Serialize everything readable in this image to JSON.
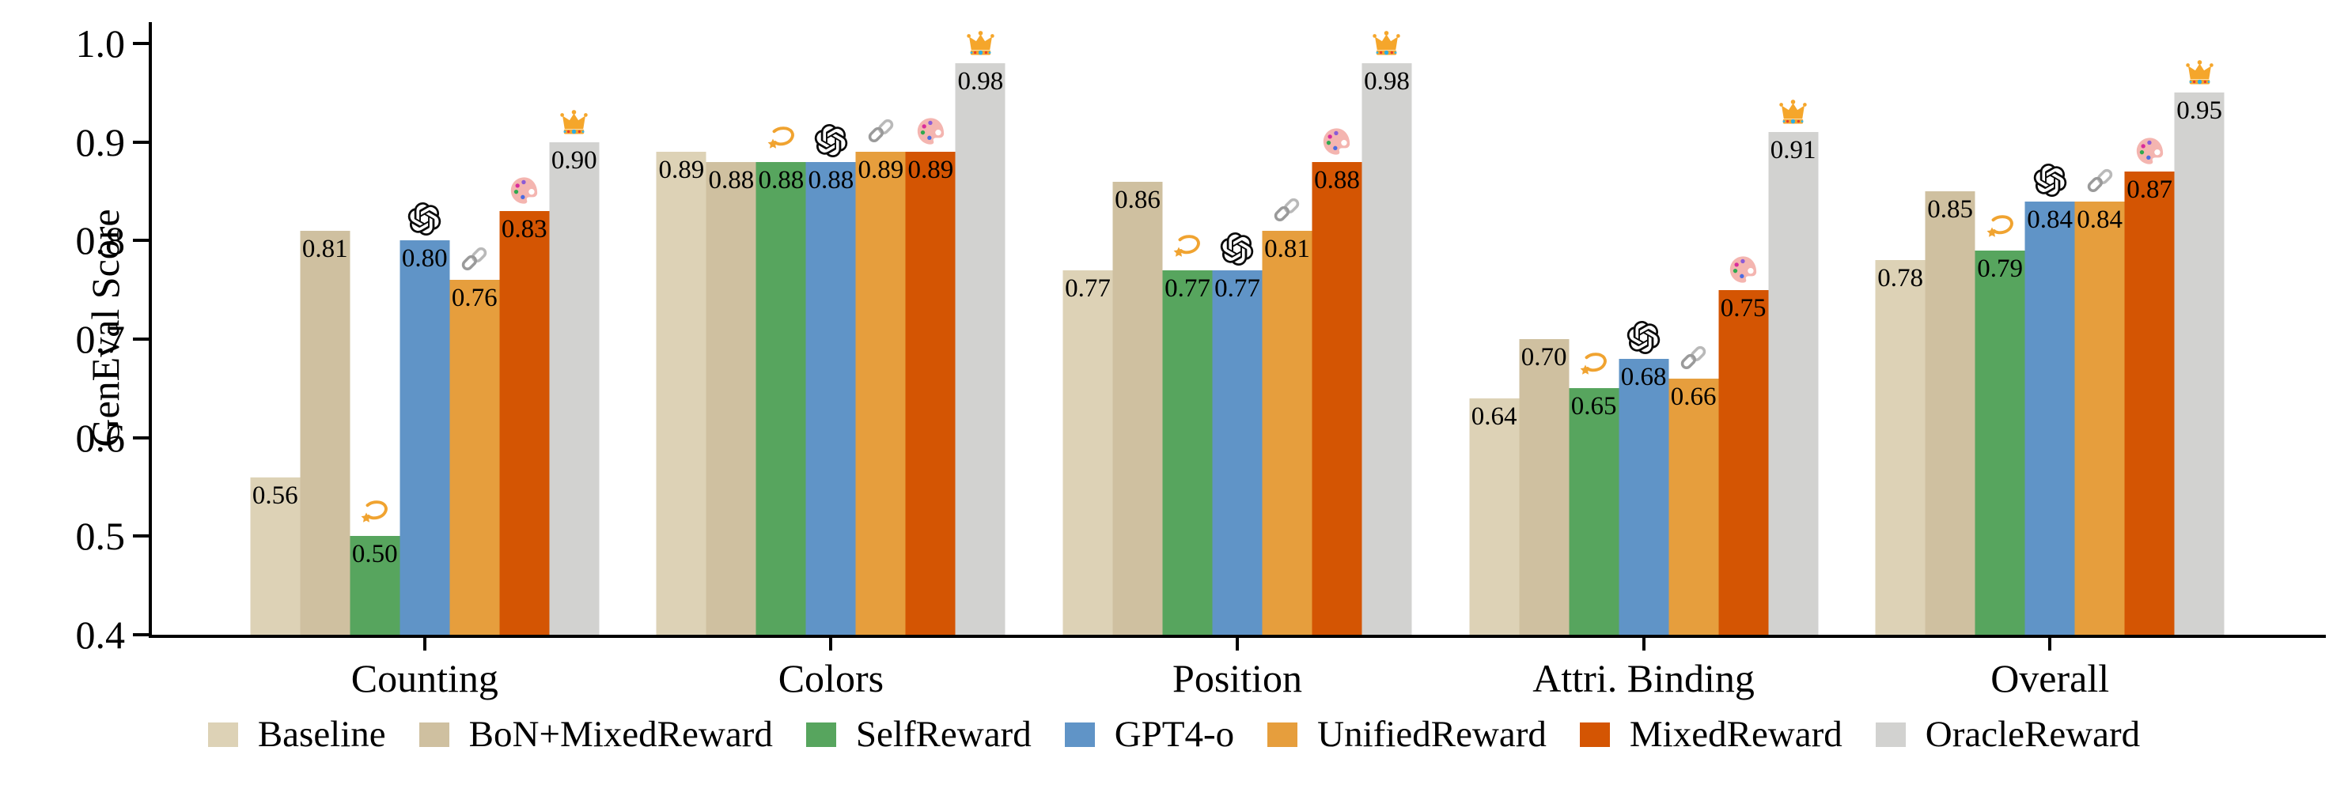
{
  "chart_data": {
    "type": "bar",
    "title": "",
    "xlabel": "",
    "ylabel": "GenEval Score",
    "ylim": [
      0.4,
      1.0
    ],
    "yticks": [
      0.4,
      0.5,
      0.6,
      0.7,
      0.8,
      0.9,
      1.0
    ],
    "grid": false,
    "legend_position": "bottom",
    "value_labels": true,
    "value_label_decimals": 2,
    "categories": [
      "Counting",
      "Colors",
      "Position",
      "Attri. Binding",
      "Overall"
    ],
    "series": [
      {
        "name": "Baseline",
        "color": "#ddd2b6",
        "values": [
          0.56,
          0.89,
          0.77,
          0.64,
          0.78
        ]
      },
      {
        "name": "BoN+MixedReward",
        "color": "#cfc0a0",
        "values": [
          0.81,
          0.88,
          0.86,
          0.7,
          0.85
        ]
      },
      {
        "name": "SelfReward",
        "color": "#57a55e",
        "icon": "dizzy-icon",
        "values": [
          0.5,
          0.88,
          0.77,
          0.65,
          0.79
        ]
      },
      {
        "name": "GPT4-o",
        "color": "#6094c7",
        "icon": "openai-icon",
        "values": [
          0.8,
          0.88,
          0.77,
          0.68,
          0.84
        ]
      },
      {
        "name": "UnifiedReward",
        "color": "#e69e3d",
        "icon": "link-icon",
        "values": [
          0.76,
          0.89,
          0.81,
          0.66,
          0.84
        ]
      },
      {
        "name": "MixedReward",
        "color": "#d45503",
        "icon": "palette-icon",
        "values": [
          0.83,
          0.89,
          0.88,
          0.75,
          0.87
        ]
      },
      {
        "name": "OracleReward",
        "color": "#d2d2d0",
        "icon": "crown-icon",
        "values": [
          0.9,
          0.98,
          0.98,
          0.91,
          0.95
        ]
      }
    ],
    "icon_colors": {
      "dizzy-icon": "#f0a330",
      "openai-icon": "#0a0a0a",
      "link-icon": "#9a9a9a",
      "palette-icon": "#f4b5b0",
      "crown-icon": "#f5a62b"
    }
  }
}
